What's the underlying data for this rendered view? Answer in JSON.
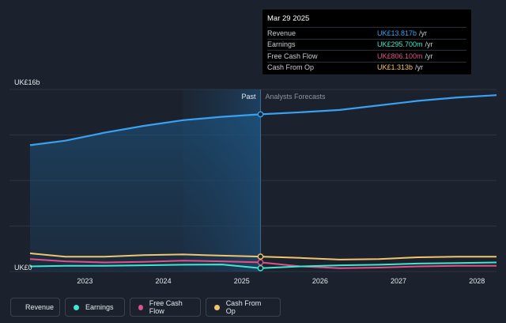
{
  "chart_data": {
    "type": "line",
    "y_axis": {
      "min_label": "UK£0",
      "max_label": "UK£16b",
      "ylim": [
        0,
        16
      ]
    },
    "x_ticks": [
      "2023",
      "2024",
      "2025",
      "2026",
      "2027",
      "2028"
    ],
    "xlim": [
      2022.3,
      2028.25
    ],
    "divider_x": 2025.24,
    "highlight_start_x": 2024.25,
    "period_labels": {
      "past": "Past",
      "forecast": "Analysts Forecasts"
    },
    "grid": true,
    "legend_position": "bottom-left",
    "series": [
      {
        "name": "Revenue",
        "color": "#3aa0f0",
        "x": [
          2022.3,
          2022.75,
          2023.25,
          2023.75,
          2024.25,
          2024.75,
          2025.24,
          2025.75,
          2026.25,
          2026.75,
          2027.25,
          2027.75,
          2028.25
        ],
        "y": [
          11.1,
          11.5,
          12.2,
          12.8,
          13.3,
          13.6,
          13.817,
          14.0,
          14.2,
          14.6,
          15.0,
          15.3,
          15.5
        ]
      },
      {
        "name": "Earnings",
        "color": "#3ee8d0",
        "x": [
          2022.3,
          2022.75,
          2023.25,
          2023.75,
          2024.25,
          2024.75,
          2025.24,
          2025.75,
          2026.25,
          2026.75,
          2027.25,
          2027.75,
          2028.25
        ],
        "y": [
          0.45,
          0.5,
          0.5,
          0.55,
          0.6,
          0.62,
          0.2957,
          0.45,
          0.55,
          0.6,
          0.7,
          0.75,
          0.8
        ]
      },
      {
        "name": "Free Cash Flow",
        "color": "#e0508a",
        "x": [
          2022.3,
          2022.75,
          2023.25,
          2023.75,
          2024.25,
          2024.75,
          2025.24,
          2025.75,
          2026.25,
          2026.75,
          2027.25,
          2027.75,
          2028.25
        ],
        "y": [
          1.1,
          0.9,
          0.8,
          0.85,
          0.95,
          0.9,
          0.8061,
          0.45,
          0.3,
          0.35,
          0.45,
          0.5,
          0.5
        ]
      },
      {
        "name": "Cash From Op",
        "color": "#f2c46d",
        "x": [
          2022.3,
          2022.75,
          2023.25,
          2023.75,
          2024.25,
          2024.75,
          2025.24,
          2025.75,
          2026.25,
          2026.75,
          2027.25,
          2027.75,
          2028.25
        ],
        "y": [
          1.6,
          1.3,
          1.3,
          1.45,
          1.5,
          1.4,
          1.313,
          1.2,
          1.05,
          1.1,
          1.25,
          1.3,
          1.3
        ]
      }
    ]
  },
  "tooltip": {
    "date": "Mar 29 2025",
    "rows": [
      {
        "label": "Revenue",
        "value": "UK£13.817b",
        "unit": "/yr",
        "color": "#3aa0f0"
      },
      {
        "label": "Earnings",
        "value": "UK£295.700m",
        "unit": "/yr",
        "color": "#3ee8d0"
      },
      {
        "label": "Free Cash Flow",
        "value": "UK£806.100m",
        "unit": "/yr",
        "color": "#e0508a"
      },
      {
        "label": "Cash From Op",
        "value": "UK£1.313b",
        "unit": "/yr",
        "color": "#f2c46d"
      }
    ]
  },
  "legend": [
    {
      "label": "Revenue",
      "color": "#3aa0f0"
    },
    {
      "label": "Earnings",
      "color": "#3ee8d0"
    },
    {
      "label": "Free Cash Flow",
      "color": "#e0508a"
    },
    {
      "label": "Cash From Op",
      "color": "#f2c46d"
    }
  ]
}
